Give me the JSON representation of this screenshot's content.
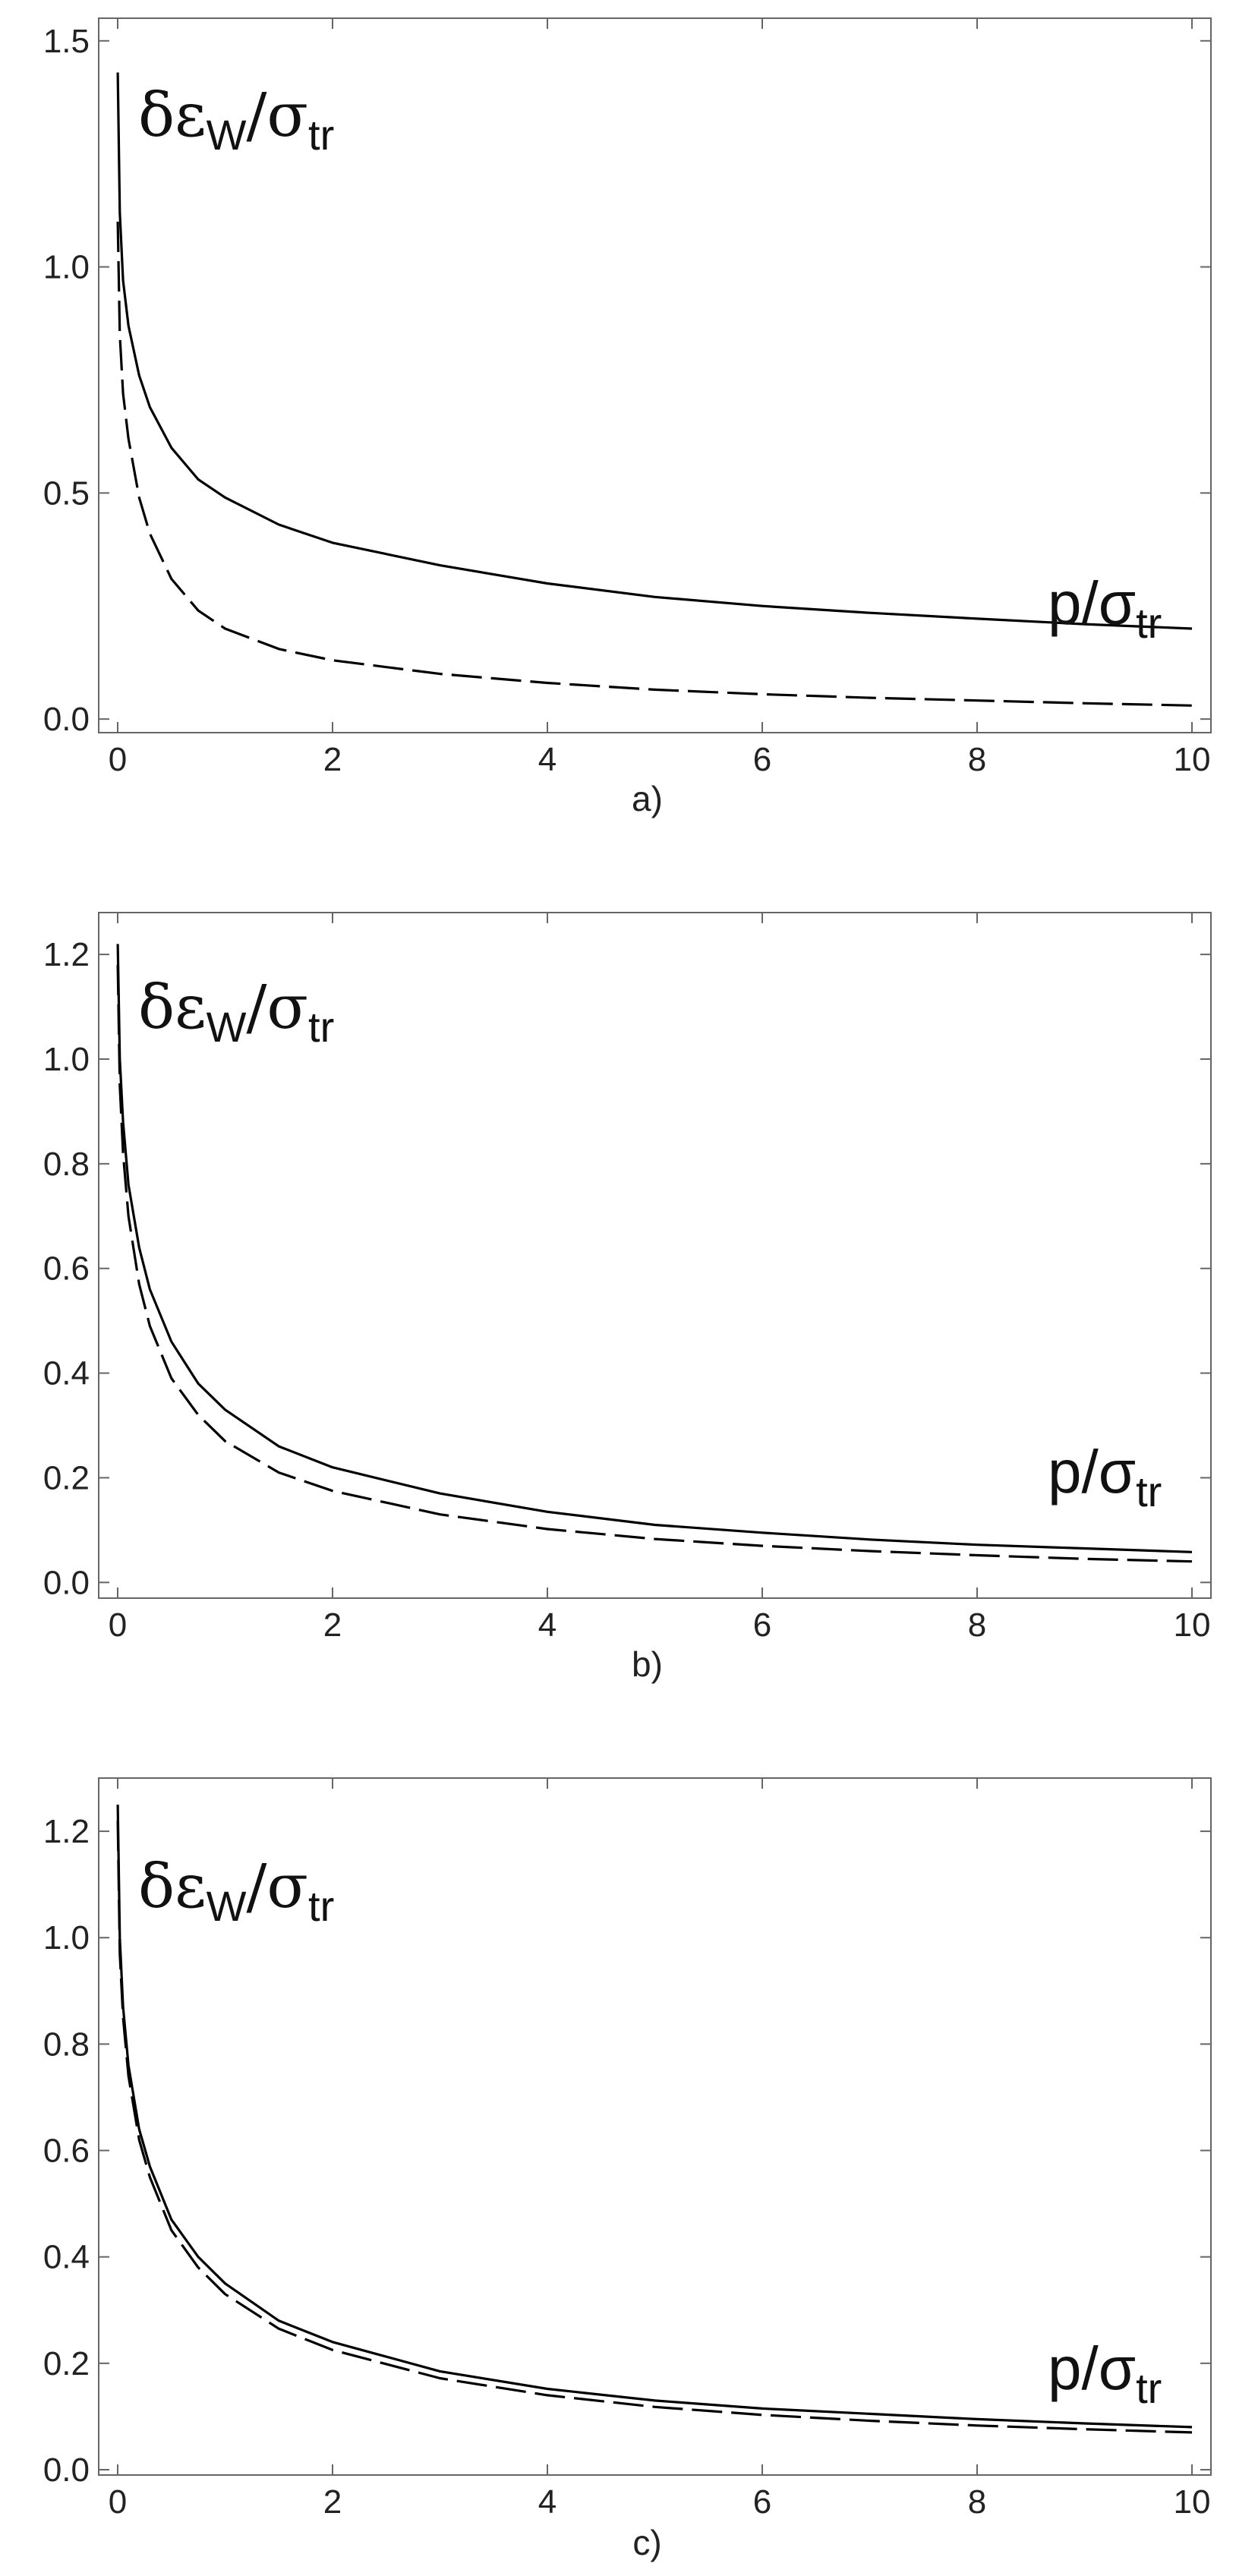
{
  "chart_data": [
    {
      "type": "line",
      "panel_label": "a)",
      "ylabel": "δε_W/σ_tr",
      "xlabel": "p/σ_tr",
      "xlim": [
        0,
        10
      ],
      "ylim": [
        -0.03,
        1.55
      ],
      "x_ticks": [
        0,
        2,
        4,
        6,
        8,
        10
      ],
      "x_tick_labels": [
        "0",
        "2",
        "4",
        "6",
        "8",
        "10"
      ],
      "y_ticks": [
        0.0,
        0.5,
        1.0,
        1.5
      ],
      "y_tick_labels": [
        "0.0",
        "0.5",
        "1.0",
        "1.5"
      ],
      "grid": false,
      "series": [
        {
          "style": "solid",
          "x": [
            0.001,
            0.02,
            0.05,
            0.1,
            0.2,
            0.3,
            0.5,
            0.75,
            1,
            1.5,
            2,
            3,
            4,
            5,
            6,
            7,
            8,
            9,
            10
          ],
          "y": [
            1.43,
            1.12,
            0.97,
            0.87,
            0.76,
            0.69,
            0.6,
            0.53,
            0.49,
            0.43,
            0.39,
            0.34,
            0.3,
            0.27,
            0.25,
            0.235,
            0.222,
            0.21,
            0.2
          ]
        },
        {
          "style": "dashed",
          "x": [
            0.001,
            0.02,
            0.05,
            0.1,
            0.2,
            0.3,
            0.5,
            0.75,
            1,
            1.5,
            2,
            3,
            4,
            5,
            6,
            7,
            8,
            9,
            10
          ],
          "y": [
            1.1,
            0.85,
            0.72,
            0.62,
            0.49,
            0.41,
            0.31,
            0.24,
            0.2,
            0.155,
            0.13,
            0.1,
            0.08,
            0.065,
            0.055,
            0.047,
            0.041,
            0.035,
            0.03
          ]
        }
      ]
    },
    {
      "type": "line",
      "panel_label": "b)",
      "ylabel": "δε_W/σ_tr",
      "xlabel": "p/σ_tr",
      "xlim": [
        0,
        10
      ],
      "ylim": [
        -0.03,
        1.28
      ],
      "x_ticks": [
        0,
        2,
        4,
        6,
        8,
        10
      ],
      "x_tick_labels": [
        "0",
        "2",
        "4",
        "6",
        "8",
        "10"
      ],
      "y_ticks": [
        0.0,
        0.2,
        0.4,
        0.6,
        0.8,
        1.0,
        1.2
      ],
      "y_tick_labels": [
        "0.0",
        "0.2",
        "0.4",
        "0.6",
        "0.8",
        "1.0",
        "1.2"
      ],
      "grid": false,
      "series": [
        {
          "style": "solid",
          "x": [
            0.001,
            0.02,
            0.05,
            0.1,
            0.2,
            0.3,
            0.5,
            0.75,
            1,
            1.5,
            2,
            3,
            4,
            5,
            6,
            7,
            8,
            9,
            10
          ],
          "y": [
            1.22,
            1.0,
            0.88,
            0.76,
            0.64,
            0.56,
            0.46,
            0.38,
            0.33,
            0.26,
            0.22,
            0.17,
            0.135,
            0.11,
            0.095,
            0.082,
            0.072,
            0.065,
            0.058
          ]
        },
        {
          "style": "dashed",
          "x": [
            0.001,
            0.02,
            0.05,
            0.1,
            0.2,
            0.3,
            0.5,
            0.75,
            1,
            1.5,
            2,
            3,
            4,
            5,
            6,
            7,
            8,
            9,
            10
          ],
          "y": [
            1.18,
            0.95,
            0.82,
            0.7,
            0.57,
            0.49,
            0.39,
            0.32,
            0.27,
            0.21,
            0.175,
            0.13,
            0.102,
            0.083,
            0.07,
            0.06,
            0.052,
            0.045,
            0.04
          ]
        }
      ]
    },
    {
      "type": "line",
      "panel_label": "c)",
      "ylabel": "δε_W/σ_tr",
      "xlabel": "p/σ_tr",
      "xlim": [
        0,
        10
      ],
      "ylim": [
        -0.01,
        1.3
      ],
      "x_ticks": [
        0,
        2,
        4,
        6,
        8,
        10
      ],
      "x_tick_labels": [
        "0",
        "2",
        "4",
        "6",
        "8",
        "10"
      ],
      "y_ticks": [
        0.0,
        0.2,
        0.4,
        0.6,
        0.8,
        1.0,
        1.2
      ],
      "y_tick_labels": [
        "0.0",
        "0.2",
        "0.4",
        "0.6",
        "0.8",
        "1.0",
        "1.2"
      ],
      "grid": false,
      "series": [
        {
          "style": "solid",
          "x": [
            0.001,
            0.02,
            0.05,
            0.1,
            0.2,
            0.3,
            0.5,
            0.75,
            1,
            1.5,
            2,
            3,
            4,
            5,
            6,
            7,
            8,
            9,
            10
          ],
          "y": [
            1.25,
            1.0,
            0.87,
            0.76,
            0.64,
            0.57,
            0.47,
            0.4,
            0.35,
            0.28,
            0.24,
            0.185,
            0.152,
            0.13,
            0.115,
            0.105,
            0.095,
            0.087,
            0.08
          ]
        },
        {
          "style": "dashed",
          "x": [
            0.001,
            0.02,
            0.05,
            0.1,
            0.2,
            0.3,
            0.5,
            0.75,
            1,
            1.5,
            2,
            3,
            4,
            5,
            6,
            7,
            8,
            9,
            10
          ],
          "y": [
            1.22,
            0.97,
            0.85,
            0.74,
            0.62,
            0.55,
            0.45,
            0.38,
            0.33,
            0.265,
            0.225,
            0.172,
            0.14,
            0.118,
            0.103,
            0.092,
            0.083,
            0.076,
            0.07
          ]
        }
      ]
    }
  ]
}
